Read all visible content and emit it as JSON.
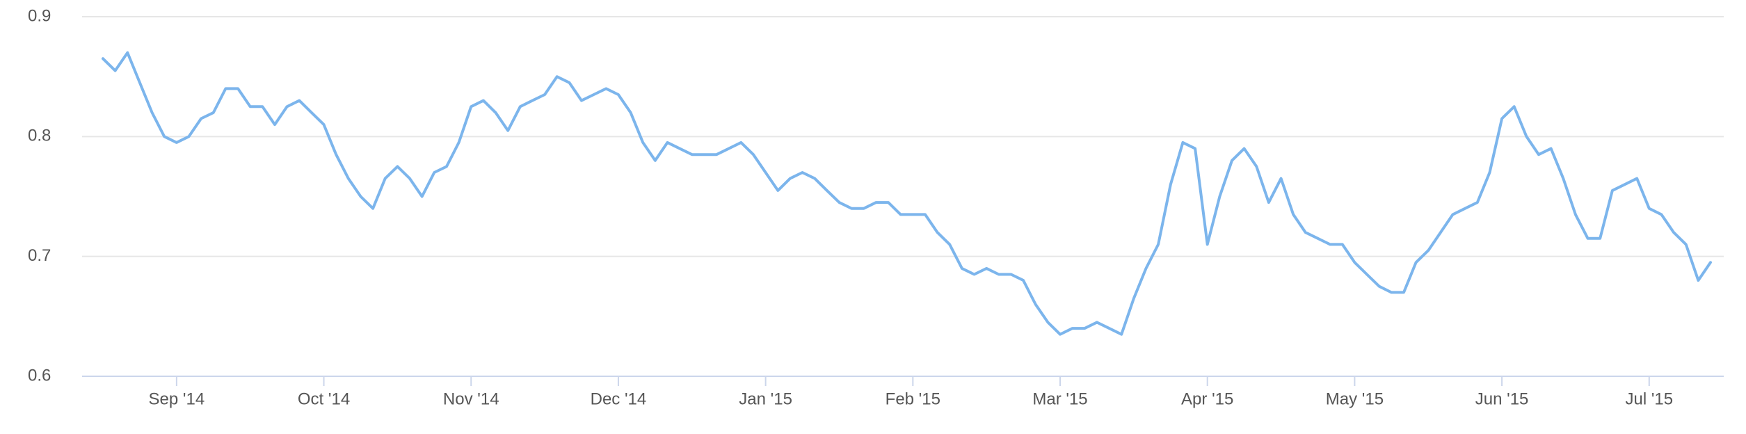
{
  "chart_data": {
    "type": "line",
    "categories": [
      null,
      null,
      null,
      null,
      null,
      null,
      "Sep '14",
      null,
      null,
      null,
      null,
      null,
      null,
      null,
      null,
      null,
      null,
      null,
      "Oct '14",
      null,
      null,
      null,
      null,
      null,
      null,
      null,
      null,
      null,
      null,
      null,
      "Nov '14",
      null,
      null,
      null,
      null,
      null,
      null,
      null,
      null,
      null,
      null,
      null,
      "Dec '14",
      null,
      null,
      null,
      null,
      null,
      null,
      null,
      null,
      null,
      null,
      null,
      "Jan '15",
      null,
      null,
      null,
      null,
      null,
      null,
      null,
      null,
      null,
      null,
      null,
      "Feb '15",
      null,
      null,
      null,
      null,
      null,
      null,
      null,
      null,
      null,
      null,
      null,
      "Mar '15",
      null,
      null,
      null,
      null,
      null,
      null,
      null,
      null,
      null,
      null,
      null,
      "Apr '15",
      null,
      null,
      null,
      null,
      null,
      null,
      null,
      null,
      null,
      null,
      null,
      "May '15",
      null,
      null,
      null,
      null,
      null,
      null,
      null,
      null,
      null,
      null,
      null,
      "Jun '15",
      null,
      null,
      null,
      null,
      null,
      null,
      null,
      null,
      null,
      null,
      null,
      "Jul '15",
      null,
      null,
      null,
      null,
      null
    ],
    "values": [
      0.865,
      0.855,
      0.87,
      0.845,
      0.82,
      0.8,
      0.795,
      0.8,
      0.815,
      0.82,
      0.84,
      0.84,
      0.825,
      0.825,
      0.81,
      0.825,
      0.83,
      0.82,
      0.81,
      0.785,
      0.765,
      0.75,
      0.74,
      0.765,
      0.775,
      0.765,
      0.75,
      0.77,
      0.775,
      0.795,
      0.825,
      0.83,
      0.82,
      0.805,
      0.825,
      0.83,
      0.835,
      0.85,
      0.845,
      0.83,
      0.835,
      0.84,
      0.835,
      0.82,
      0.795,
      0.78,
      0.795,
      0.79,
      0.785,
      0.785,
      0.785,
      0.79,
      0.795,
      0.785,
      0.77,
      0.755,
      0.765,
      0.77,
      0.765,
      0.755,
      0.745,
      0.74,
      0.74,
      0.745,
      0.745,
      0.735,
      0.735,
      0.735,
      0.72,
      0.71,
      0.69,
      0.685,
      0.69,
      0.685,
      0.685,
      0.68,
      0.66,
      0.645,
      0.635,
      0.64,
      0.64,
      0.645,
      0.64,
      0.635,
      0.665,
      0.69,
      0.71,
      0.76,
      0.795,
      0.79,
      0.71,
      0.75,
      0.78,
      0.79,
      0.775,
      0.745,
      0.765,
      0.735,
      0.72,
      0.715,
      0.71,
      0.71,
      0.695,
      0.685,
      0.675,
      0.67,
      0.67,
      0.695,
      0.705,
      0.72,
      0.735,
      0.74,
      0.745,
      0.77,
      0.815,
      0.825,
      0.8,
      0.785,
      0.79,
      0.765,
      0.735,
      0.715,
      0.715,
      0.755,
      0.76,
      0.765,
      0.74,
      0.735,
      0.72,
      0.71,
      0.68,
      0.695
    ],
    "color": "#7cb5ec",
    "ylim": [
      0.6,
      0.9
    ],
    "yticks": [
      0.6,
      0.7,
      0.8,
      0.9
    ],
    "grid": true
  }
}
